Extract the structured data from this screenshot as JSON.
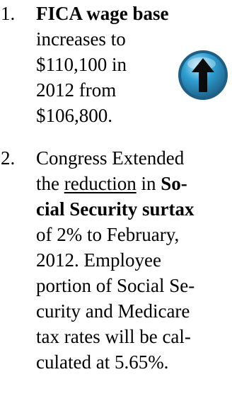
{
  "items": [
    {
      "number": "1.",
      "lines": [
        {
          "bold": "FICA wage base"
        },
        {
          "text": "increases to"
        },
        {
          "text": "$110,100 in"
        },
        {
          "text": "2012 from"
        },
        {
          "text": "$106,800."
        }
      ]
    },
    {
      "number": "2.",
      "lines": [
        {
          "text": "Congress Extended"
        },
        {
          "pre": "the ",
          "underline": "reduction",
          "post": " in ",
          "bold": "So-"
        },
        {
          "bold": "cial Security surtax"
        },
        {
          "text": "of 2% to February,"
        },
        {
          "text": "2012.  Employee"
        },
        {
          "text": "portion of Social Se-"
        },
        {
          "text": "curity and Medicare"
        },
        {
          "text": "tax rates will be cal-"
        },
        {
          "text": "culated at 5.65%."
        }
      ]
    }
  ],
  "icons": {
    "up_arrow": "up-arrow-icon",
    "colors": {
      "ring": "#1e5f86",
      "fill": "#2f9fd3",
      "highlight": "#bfe9f9",
      "arrow": "#0b0b0b"
    }
  }
}
